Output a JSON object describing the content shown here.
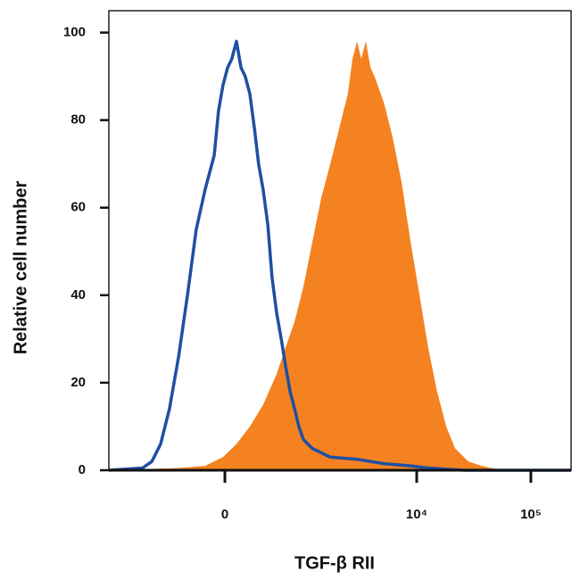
{
  "chart_data": {
    "type": "histogram-overlay",
    "xlabel": "TGF-β RII",
    "ylabel": "Relative cell number",
    "xlim": [
      0,
      1000
    ],
    "xticks": [
      {
        "value": 251,
        "label": "0"
      },
      {
        "value": 666,
        "label": "10⁴"
      },
      {
        "value": 913,
        "label": "10⁵"
      }
    ],
    "ylim": [
      0,
      105
    ],
    "yticks": [
      0,
      20,
      40,
      60,
      80,
      100
    ],
    "series": [
      {
        "color": "#f58220",
        "fill": true,
        "x": [
          0,
          151,
          208,
          247,
          276,
          305,
          334,
          363,
          382,
          402,
          421,
          440,
          459,
          479,
          498,
          517,
          527,
          537,
          546,
          556,
          566,
          575,
          595,
          614,
          633,
          653,
          672,
          691,
          710,
          730,
          749,
          778,
          807,
          836,
          1000
        ],
        "values": [
          0,
          0.5,
          1,
          3,
          6,
          10,
          15,
          22,
          28,
          34,
          42,
          52,
          62,
          70,
          78,
          86,
          94,
          98,
          94,
          98,
          92,
          90,
          84,
          76,
          66,
          52,
          40,
          28,
          18,
          10,
          5,
          2,
          1,
          0.3,
          0
        ]
      },
      {
        "color": "#1f4fa3",
        "fill": false,
        "x": [
          0,
          73,
          93,
          112,
          131,
          151,
          170,
          189,
          208,
          218,
          228,
          237,
          247,
          257,
          266,
          276,
          286,
          295,
          305,
          315,
          324,
          334,
          344,
          353,
          363,
          373,
          382,
          392,
          402,
          411,
          421,
          440,
          479,
          537,
          595,
          653,
          691,
          768,
          1000
        ],
        "values": [
          0,
          0.5,
          2,
          6,
          14,
          26,
          40,
          55,
          64,
          68,
          72,
          82,
          88,
          92,
          94,
          98,
          92,
          90,
          86,
          78,
          70,
          64,
          56,
          44,
          36,
          30,
          24,
          18,
          14,
          10,
          7,
          5,
          3,
          2.5,
          1.5,
          1,
          0.5,
          0,
          0
        ]
      }
    ]
  }
}
